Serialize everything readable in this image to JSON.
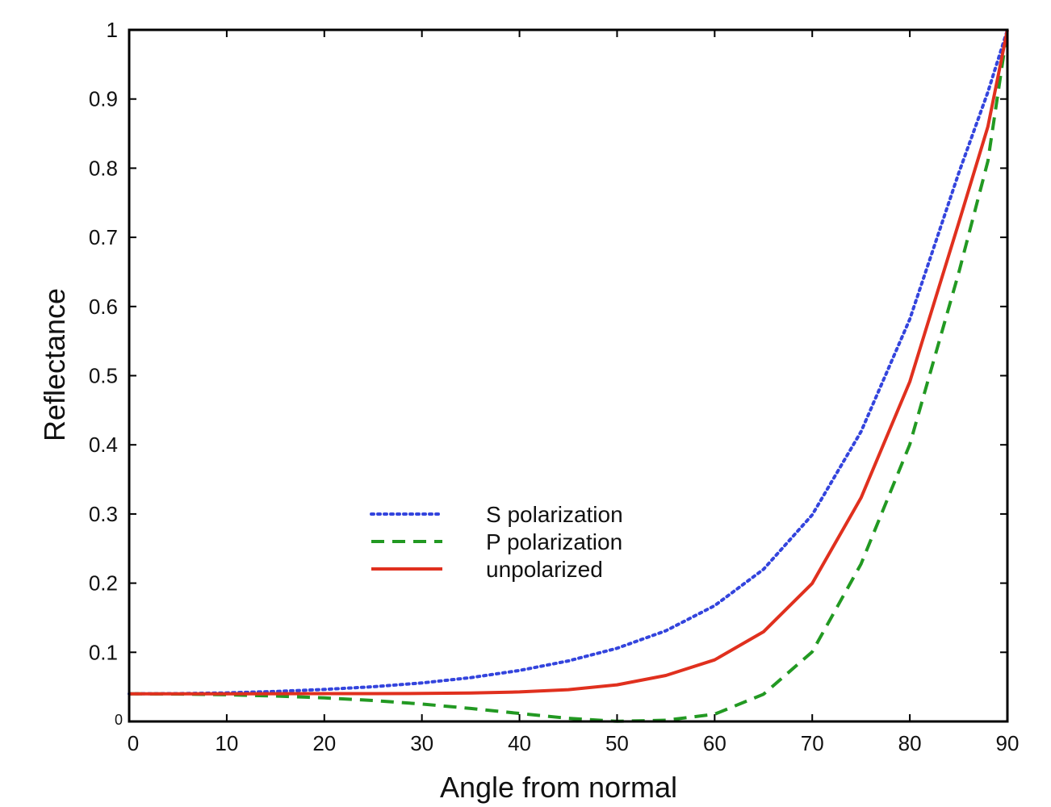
{
  "chart_data": {
    "type": "line",
    "title": "",
    "xlabel": "Angle from normal",
    "ylabel": "Reflectance",
    "xlim": [
      0,
      90
    ],
    "ylim": [
      0,
      1
    ],
    "x_ticks": [
      0,
      10,
      20,
      30,
      40,
      50,
      60,
      70,
      80,
      90
    ],
    "x_tick_labels": [
      "0",
      "10",
      "20",
      "30",
      "40",
      "50",
      "60",
      "70",
      "80",
      "90"
    ],
    "y_ticks": [
      0,
      0.1,
      0.2,
      0.3,
      0.4,
      0.5,
      0.6,
      0.7,
      0.8,
      0.9,
      1
    ],
    "y_tick_labels": [
      "0",
      "0.1",
      "0.2",
      "0.3",
      "0.4",
      "0.5",
      "0.6",
      "0.7",
      "0.8",
      "0.9",
      "1"
    ],
    "grid": false,
    "legend_position": "center-left",
    "x": [
      0,
      5,
      10,
      15,
      20,
      25,
      30,
      35,
      40,
      45,
      50,
      55,
      60,
      65,
      70,
      75,
      80,
      85,
      88,
      90
    ],
    "series": [
      {
        "name": "S polarization",
        "style": "dotted",
        "color": "#3344dd",
        "values": [
          0.04,
          0.0402,
          0.0413,
          0.0434,
          0.0463,
          0.0502,
          0.0557,
          0.0634,
          0.0738,
          0.0875,
          0.1058,
          0.1312,
          0.1674,
          0.2199,
          0.2987,
          0.4191,
          0.5818,
          0.7927,
          0.91,
          1.0
        ]
      },
      {
        "name": "P polarization",
        "style": "dashed",
        "color": "#229922",
        "values": [
          0.04,
          0.0397,
          0.0386,
          0.0368,
          0.0341,
          0.0303,
          0.0252,
          0.0188,
          0.0115,
          0.0045,
          0.0002,
          0.0018,
          0.0105,
          0.0393,
          0.1007,
          0.2278,
          0.4006,
          0.6483,
          0.81,
          1.0
        ]
      },
      {
        "name": "unpolarized",
        "style": "solid",
        "color": "#e0301e",
        "values": [
          0.04,
          0.04,
          0.04,
          0.0401,
          0.0402,
          0.0403,
          0.0405,
          0.0411,
          0.0427,
          0.046,
          0.053,
          0.0665,
          0.089,
          0.1296,
          0.1997,
          0.3235,
          0.4912,
          0.7205,
          0.86,
          1.0
        ]
      }
    ]
  },
  "colors": {
    "axis": "#000000",
    "background": "#ffffff"
  }
}
